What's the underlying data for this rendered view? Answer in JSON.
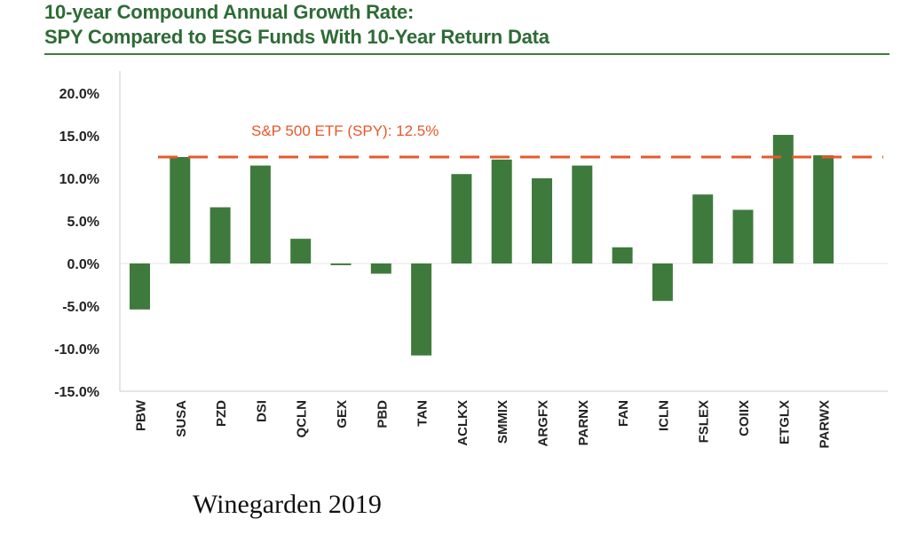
{
  "chart_data": {
    "type": "bar",
    "title": "10-year Compound Annual Growth Rate:",
    "subtitle": "SPY Compared to ESG Funds With 10-Year Return Data",
    "xlabel": "",
    "ylabel": "",
    "ylim": [
      -15,
      20
    ],
    "yticks": [
      20,
      15,
      10,
      5,
      0,
      -5,
      -10,
      -15
    ],
    "ytick_labels": [
      "20.0%",
      "15.0%",
      "10.0%",
      "5.0%",
      "0.0%",
      "-5.0%",
      "-10.0%",
      "-15.0%"
    ],
    "grid": false,
    "categories": [
      "PBW",
      "SUSA",
      "PZD",
      "DSI",
      "QCLN",
      "GEX",
      "PBD",
      "TAN",
      "ACLKX",
      "SMMIX",
      "ARGFX",
      "PARNX",
      "FAN",
      "ICLN",
      "FSLEX",
      "COIIX",
      "ETGLX",
      "PARWX"
    ],
    "values": [
      -5.4,
      12.5,
      6.6,
      11.5,
      2.9,
      -0.2,
      -1.2,
      -10.8,
      10.5,
      12.2,
      10.0,
      11.5,
      1.9,
      -4.4,
      8.1,
      6.3,
      15.1,
      12.7
    ],
    "reference_line": {
      "value": 12.5,
      "label": "S&P 500 ETF (SPY): 12.5%"
    },
    "colors": {
      "bar": "#3f7a3d",
      "reference_line": "#e8572b",
      "title": "#2e6b35",
      "axis": "#cccccc"
    }
  },
  "caption": "Winegarden 2019"
}
